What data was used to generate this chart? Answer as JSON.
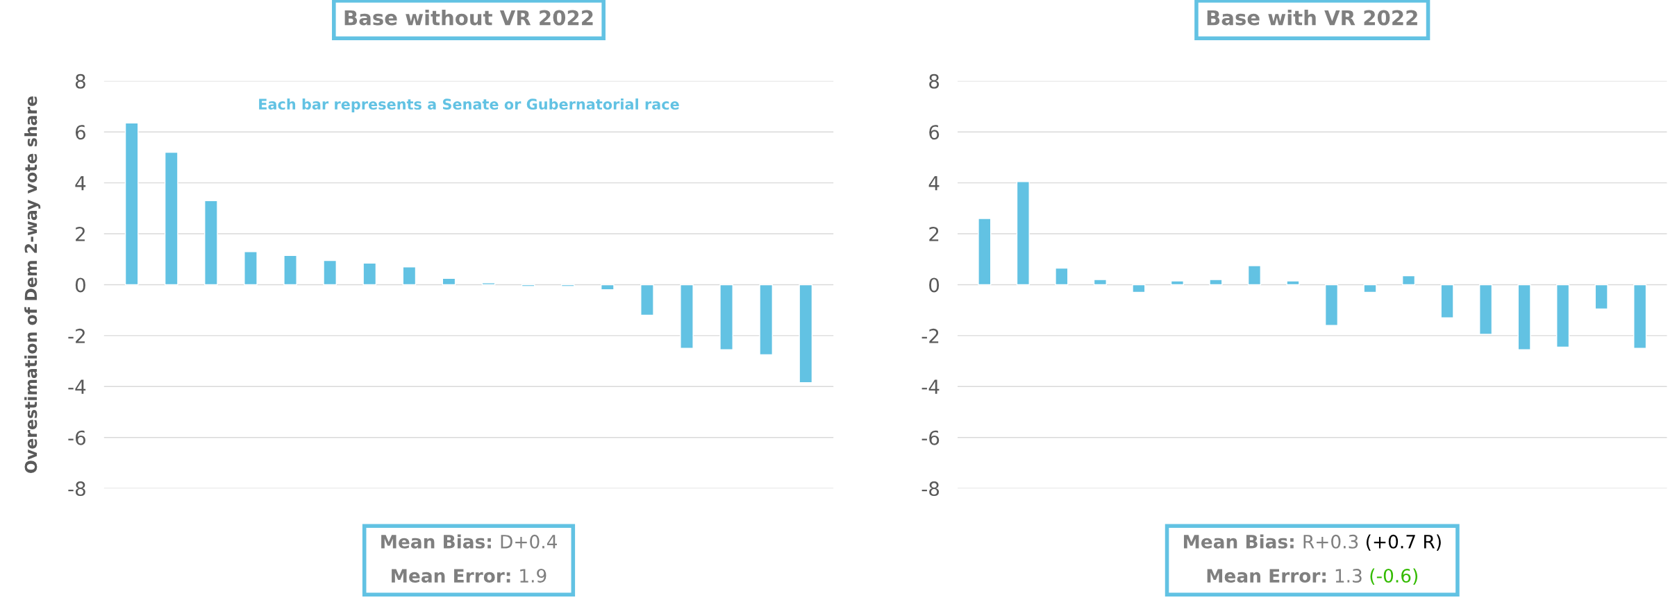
{
  "chart_data": [
    {
      "type": "bar",
      "title": "Base without VR 2022",
      "ylabel": "Overestimation of Dem 2-way vote share",
      "categories": [
        null,
        null,
        null,
        null,
        null,
        null,
        null,
        null,
        null,
        null,
        null,
        null,
        null,
        null,
        null,
        null,
        null,
        null
      ],
      "values": [
        6.35,
        5.2,
        3.3,
        1.3,
        1.15,
        0.95,
        0.85,
        0.7,
        0.25,
        0.07,
        -0.07,
        -0.07,
        -0.2,
        -1.2,
        -2.5,
        -2.55,
        -2.75,
        -3.85
      ],
      "color": "#62c2e3",
      "ylim": [
        -8,
        8
      ],
      "yticks": [
        -8,
        -6,
        -4,
        -2,
        0,
        2,
        4,
        6,
        8
      ],
      "grid": "y",
      "annotations": [
        "Each bar represents a Senate or Gubernatorial race",
        "Mean Bias:",
        "D+0.4",
        "Mean Error:",
        "1.9"
      ]
    },
    {
      "type": "bar",
      "title": "Base with VR 2022",
      "categories": [
        null,
        null,
        null,
        null,
        null,
        null,
        null,
        null,
        null,
        null,
        null,
        null,
        null,
        null,
        null,
        null,
        null,
        null
      ],
      "values": [
        2.6,
        4.05,
        0.65,
        0.2,
        -0.3,
        0.15,
        0.2,
        0.75,
        0.15,
        -1.6,
        -0.3,
        0.35,
        -1.3,
        -1.95,
        -2.55,
        -2.45,
        -0.95,
        -2.5
      ],
      "color": "#62c2e3",
      "ylim": [
        -8,
        8
      ],
      "yticks": [
        -8,
        -6,
        -4,
        -2,
        0,
        2,
        4,
        6,
        8
      ],
      "grid": "y",
      "annotations": [
        "Mean Bias:",
        "R+0.3",
        "(+0.7 R)",
        "Mean Error:",
        "1.3",
        "(-0.6)"
      ]
    }
  ]
}
